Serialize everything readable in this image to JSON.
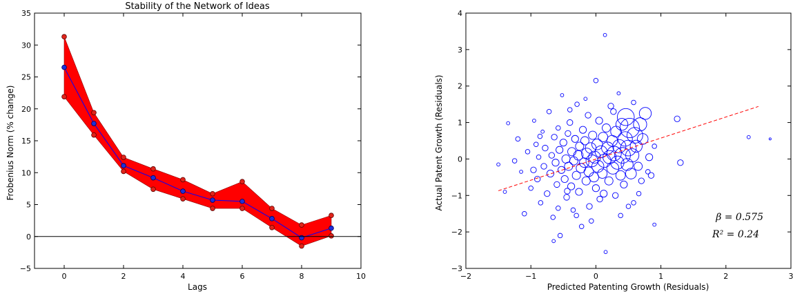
{
  "chart_data": [
    {
      "type": "line",
      "title": "Stability of the Network of Ideas",
      "xlabel": "Lags",
      "ylabel": "Frobenius Norm (% change)",
      "xlim": [
        -1,
        10
      ],
      "ylim": [
        -5,
        35
      ],
      "xticks": [
        "0",
        "2",
        "4",
        "6",
        "8",
        "10"
      ],
      "yticks": [
        "−5",
        "0",
        "5",
        "10",
        "15",
        "20",
        "25",
        "30",
        "35"
      ],
      "grid": false,
      "zero_line": 0,
      "band_color": "#ff0000",
      "line_color": "#0000ff",
      "series": [
        {
          "role": "upper",
          "x": [
            0,
            1,
            2,
            3,
            4,
            5,
            6,
            7,
            8,
            9
          ],
          "values": [
            31.3,
            19.4,
            12.4,
            10.6,
            8.9,
            6.7,
            8.6,
            4.4,
            1.8,
            3.3
          ]
        },
        {
          "role": "mean",
          "x": [
            0,
            1,
            2,
            3,
            4,
            5,
            6,
            7,
            8,
            9
          ],
          "values": [
            26.5,
            17.7,
            11.1,
            9.2,
            7.1,
            5.7,
            5.5,
            2.8,
            -0.2,
            1.3
          ]
        },
        {
          "role": "lower",
          "x": [
            0,
            1,
            2,
            3,
            4,
            5,
            6,
            7,
            8,
            9
          ],
          "values": [
            21.9,
            15.9,
            10.2,
            7.4,
            5.9,
            4.4,
            4.4,
            1.4,
            -1.5,
            0.1
          ]
        }
      ]
    },
    {
      "type": "scatter",
      "title": "",
      "xlabel": "Predicted Patenting Growth (Residuals)",
      "ylabel": "Actual Patent Growth (Residuals)",
      "xlim": [
        -2,
        3
      ],
      "ylim": [
        -3,
        4
      ],
      "xticks": [
        "−2",
        "−1",
        "0",
        "1",
        "2",
        "3"
      ],
      "yticks": [
        "−3",
        "−2",
        "−1",
        "0",
        "1",
        "2",
        "3",
        "4"
      ],
      "grid": false,
      "marker_color": "#0000ff",
      "fit_color": "#ff0000",
      "fit_line": {
        "x": [
          -1.5,
          2.5
        ],
        "y": [
          -0.87,
          1.44
        ]
      },
      "annotations": [
        "β = 0.575",
        "R² = 0.24"
      ],
      "points": [
        [
          -1.5,
          -0.15,
          2
        ],
        [
          -1.35,
          0.98,
          2
        ],
        [
          -1.4,
          -0.9,
          2
        ],
        [
          -1.2,
          0.55,
          3
        ],
        [
          -1.15,
          -0.35,
          2
        ],
        [
          -1.1,
          -1.5,
          3
        ],
        [
          -1.05,
          0.2,
          3
        ],
        [
          -1.0,
          -0.8,
          3
        ],
        [
          -0.95,
          1.05,
          2
        ],
        [
          -0.92,
          0.4,
          3
        ],
        [
          -0.9,
          -0.55,
          4
        ],
        [
          -0.88,
          0.05,
          3
        ],
        [
          -0.85,
          -1.2,
          3
        ],
        [
          -0.82,
          0.75,
          2
        ],
        [
          -0.8,
          -0.2,
          4
        ],
        [
          -0.78,
          0.3,
          4
        ],
        [
          -0.75,
          -0.95,
          4
        ],
        [
          -0.72,
          1.3,
          3
        ],
        [
          -0.7,
          -0.4,
          5
        ],
        [
          -0.68,
          0.1,
          4
        ],
        [
          -0.66,
          -1.6,
          3
        ],
        [
          -0.64,
          0.6,
          4
        ],
        [
          -0.62,
          -0.1,
          5
        ],
        [
          -0.6,
          -0.7,
          4
        ],
        [
          -0.58,
          0.85,
          3
        ],
        [
          -0.56,
          0.25,
          5
        ],
        [
          -0.55,
          -2.1,
          3
        ],
        [
          -0.53,
          -0.3,
          5
        ],
        [
          -0.52,
          1.75,
          2
        ],
        [
          -0.5,
          0.45,
          5
        ],
        [
          -0.48,
          -0.55,
          5
        ],
        [
          -0.46,
          0.0,
          6
        ],
        [
          -0.45,
          -1.05,
          4
        ],
        [
          -0.43,
          0.7,
          4
        ],
        [
          -0.42,
          -0.2,
          6
        ],
        [
          -0.4,
          1.0,
          4
        ],
        [
          -0.38,
          -0.75,
          5
        ],
        [
          -0.37,
          0.2,
          6
        ],
        [
          -0.35,
          -1.4,
          3
        ],
        [
          -0.34,
          -0.05,
          6
        ],
        [
          -0.32,
          0.55,
          5
        ],
        [
          -0.3,
          -0.45,
          6
        ],
        [
          -0.29,
          1.5,
          3
        ],
        [
          -0.27,
          0.1,
          7
        ],
        [
          -0.26,
          -0.9,
          5
        ],
        [
          -0.25,
          0.35,
          6
        ],
        [
          -0.23,
          -0.25,
          7
        ],
        [
          -0.22,
          -1.85,
          3
        ],
        [
          -0.2,
          0.8,
          5
        ],
        [
          -0.18,
          -0.1,
          7
        ],
        [
          -0.17,
          0.5,
          6
        ],
        [
          -0.15,
          -0.6,
          6
        ],
        [
          -0.14,
          0.15,
          8
        ],
        [
          -0.12,
          1.2,
          4
        ],
        [
          -0.11,
          -0.35,
          7
        ],
        [
          -0.1,
          -1.3,
          4
        ],
        [
          -0.08,
          0.3,
          8
        ],
        [
          -0.06,
          -0.05,
          9
        ],
        [
          -0.05,
          0.65,
          6
        ],
        [
          -0.03,
          -0.5,
          7
        ],
        [
          -0.02,
          0.05,
          9
        ],
        [
          0.0,
          2.15,
          3
        ],
        [
          0.0,
          -0.8,
          5
        ],
        [
          0.02,
          0.4,
          8
        ],
        [
          0.03,
          -0.2,
          9
        ],
        [
          0.05,
          1.05,
          5
        ],
        [
          0.06,
          -1.1,
          4
        ],
        [
          0.08,
          0.2,
          9
        ],
        [
          0.1,
          -0.4,
          7
        ],
        [
          0.11,
          0.6,
          7
        ],
        [
          0.13,
          -0.05,
          10
        ],
        [
          0.14,
          3.4,
          2
        ],
        [
          0.15,
          -2.55,
          2
        ],
        [
          0.16,
          0.85,
          6
        ],
        [
          0.18,
          0.3,
          9
        ],
        [
          0.2,
          -0.6,
          6
        ],
        [
          0.21,
          0.05,
          10
        ],
        [
          0.23,
          1.45,
          4
        ],
        [
          0.25,
          0.5,
          8
        ],
        [
          0.26,
          -0.25,
          9
        ],
        [
          0.28,
          0.15,
          11
        ],
        [
          0.3,
          -1.0,
          4
        ],
        [
          0.31,
          0.75,
          8
        ],
        [
          0.33,
          -0.1,
          10
        ],
        [
          0.35,
          1.8,
          2
        ],
        [
          0.36,
          0.35,
          10
        ],
        [
          0.38,
          -0.45,
          7
        ],
        [
          0.4,
          0.95,
          9
        ],
        [
          0.41,
          0.1,
          12
        ],
        [
          0.43,
          -0.7,
          5
        ],
        [
          0.45,
          0.55,
          11
        ],
        [
          0.46,
          1.15,
          13
        ],
        [
          0.48,
          -0.15,
          9
        ],
        [
          0.5,
          0.3,
          12
        ],
        [
          0.52,
          0.85,
          15
        ],
        [
          0.54,
          -0.4,
          8
        ],
        [
          0.56,
          0.1,
          10
        ],
        [
          0.58,
          -1.2,
          3
        ],
        [
          0.6,
          0.65,
          12
        ],
        [
          0.62,
          0.35,
          9
        ],
        [
          0.65,
          -0.2,
          6
        ],
        [
          0.68,
          0.95,
          10
        ],
        [
          0.7,
          -0.6,
          4
        ],
        [
          0.72,
          0.55,
          8
        ],
        [
          0.76,
          1.25,
          9
        ],
        [
          0.8,
          -0.35,
          3
        ],
        [
          0.85,
          -0.45,
          4
        ],
        [
          0.9,
          0.35,
          3
        ],
        [
          1.25,
          1.1,
          4
        ],
        [
          1.3,
          -0.1,
          4
        ],
        [
          2.35,
          0.6,
          2
        ],
        [
          2.68,
          0.55,
          1
        ],
        [
          -0.65,
          -2.25,
          2
        ],
        [
          0.9,
          -1.8,
          2
        ],
        [
          -0.3,
          -1.55,
          3
        ],
        [
          0.5,
          -1.3,
          3
        ],
        [
          -1.25,
          -0.05,
          3
        ],
        [
          -0.96,
          -0.3,
          4
        ],
        [
          -0.44,
          -0.88,
          4
        ],
        [
          0.12,
          -0.95,
          5
        ],
        [
          0.27,
          1.3,
          4
        ],
        [
          -0.16,
          1.65,
          2
        ],
        [
          0.66,
          -0.95,
          3
        ],
        [
          0.82,
          0.05,
          5
        ],
        [
          -0.86,
          0.62,
          3
        ],
        [
          -0.58,
          -1.35,
          3
        ],
        [
          0.38,
          -1.55,
          3
        ],
        [
          -0.07,
          -1.7,
          3
        ],
        [
          0.58,
          1.55,
          3
        ],
        [
          -0.4,
          1.35,
          3
        ]
      ]
    }
  ]
}
